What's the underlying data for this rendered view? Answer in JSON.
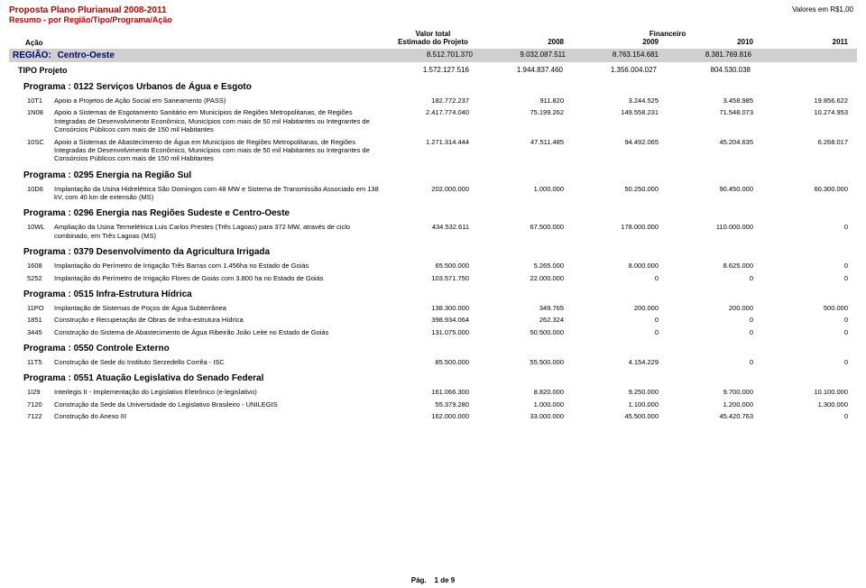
{
  "header": {
    "title": "Proposta Plano Plurianual 2008-2011",
    "subtitle": "Resumo - por Região/Tipo/Programa/Ação",
    "currency_note": "Valores em R$1,00",
    "acao_label": "Ação",
    "valor_total_label1": "Valor total",
    "valor_total_label2": "Estimado do Projeto",
    "financeiro_label": "Financeiro",
    "years": [
      "2008",
      "2009",
      "2010",
      "2011"
    ]
  },
  "region": {
    "prefix": "REGIÃO:",
    "name": "Centro-Oeste",
    "est": "8.512.701.370",
    "y": [
      "9.032.087.511",
      "8.763.154.681",
      "8.381.769.816",
      ""
    ]
  },
  "tipo": {
    "label": "TIPO  Projeto",
    "est": "1.572.127.516",
    "y": [
      "1.944.837.460",
      "1.356.004.027",
      "804.530.038",
      ""
    ]
  },
  "programas": [
    {
      "header": "Programa : 0122    Serviços Urbanos de Água e Esgoto",
      "actions": [
        {
          "code": "10T1",
          "desc": "Apoio a Projetos de Ação Social em Saneamento (PASS)",
          "est": "182.772.237",
          "y": [
            "911.820",
            "3.244.525",
            "3.458.985",
            "19.856.622"
          ]
        },
        {
          "code": "1N08",
          "desc": "Apoio a Sistemas de Esgotamento Sanitário em Municípios de Regiões Metropolitanas, de Regiões Integradas de Desenvolvimento Econômico, Municípios com mais de 50 mil Habitantes ou Integrantes de Consórcios Públicos com mais de 150 mil Habitantes",
          "est": "2.417.774.040",
          "y": [
            "75.199.262",
            "149.558.231",
            "71.548.073",
            "10.274.953"
          ]
        },
        {
          "code": "10SC",
          "desc": "Apoio a Sistemas de Abastecimento de Água em Municípios de Regiões Metropolitanas, de Regiões Integradas de Desenvolvimento Econômico, Municípios com mais de 50 mil Habitantes ou Integrantes de Consórcios Públicos com mais de 150 mil Habitantes",
          "est": "1.271.314.444",
          "y": [
            "47.511.485",
            "94.492.065",
            "45.204.635",
            "6.268.017"
          ]
        }
      ]
    },
    {
      "header": "Programa : 0295    Energia na Região Sul",
      "actions": [
        {
          "code": "10D6",
          "desc": "Implantação da Usina Hidrelétrica São Domingos com 48 MW e Sistema de Transmissão Associado em 138 kV, com 40 km de extensão (MS)",
          "est": "202.000.000",
          "y": [
            "1.000.000",
            "50.250.000",
            "90.450.000",
            "60.300.000"
          ]
        }
      ]
    },
    {
      "header": "Programa : 0296    Energia nas Regiões Sudeste e Centro-Oeste",
      "actions": [
        {
          "code": "10WL",
          "desc": "Ampliação da Usina Termelétrica Luis Carlos Prestes (Três Lagoas) para 372 MW, através de ciclo combinado, em Três Lagoas (MS)",
          "est": "434.532.611",
          "y": [
            "67.500.000",
            "178.000.000",
            "110.000.000",
            "0"
          ]
        }
      ]
    },
    {
      "header": "Programa : 0379    Desenvolvimento da Agricultura Irrigada",
      "actions": [
        {
          "code": "1608",
          "desc": "Implantação do Perímetro de Irrigação Três Barras com 1.456ha no Estado de Goiás",
          "est": "65.500.000",
          "y": [
            "5.265.000",
            "8.000.000",
            "8.625.000",
            "0"
          ]
        },
        {
          "code": "5252",
          "desc": "Implantação do Perímetro de Irrigação Flores de Goiás com 3.800 ha no Estado de Goiás",
          "est": "103.571.750",
          "y": [
            "22.000.000",
            "0",
            "0",
            "0"
          ]
        }
      ]
    },
    {
      "header": "Programa : 0515    Infra-Estrutura Hídrica",
      "actions": [
        {
          "code": "11PO",
          "desc": "Implantação de Sistemas de Poços de Água Subterrânea",
          "est": "138.300.000",
          "y": [
            "349.765",
            "200.000",
            "200.000",
            "500.000"
          ]
        },
        {
          "code": "1851",
          "desc": "Construção e Recuperação de Obras de Infra-estrutura Hídrica",
          "est": "398.934.064",
          "y": [
            "262.324",
            "0",
            "0",
            "0"
          ]
        },
        {
          "code": "3445",
          "desc": "Construção do Sistema de Abastecimento de Água Ribeirão João Leite no Estado de Goiás",
          "est": "131.075.000",
          "y": [
            "50.500.000",
            "0",
            "0",
            "0"
          ]
        }
      ]
    },
    {
      "header": "Programa : 0550    Controle Externo",
      "actions": [
        {
          "code": "11T5",
          "desc": "Construção de Sede do Instituto Serzedello Corrêa - ISC",
          "est": "85.500.000",
          "y": [
            "55.500.000",
            "4.154.229",
            "0",
            "0"
          ]
        }
      ]
    },
    {
      "header": "Programa : 0551    Atuação Legislativa do Senado Federal",
      "actions": [
        {
          "code": "1I29",
          "desc": "Interlegis II - Implementação do Legislativo Eletrônico (e-legislativo)",
          "est": "161.066.300",
          "y": [
            "8.820.000",
            "9.250.000",
            "9.700.000",
            "10.100.000"
          ]
        },
        {
          "code": "7120",
          "desc": "Construção da Sede da Universidade do Legislativo Brasileiro - UNILEGIS",
          "est": "55.379.280",
          "y": [
            "1.000.000",
            "1.100.000",
            "1.200.000",
            "1.300.000"
          ]
        },
        {
          "code": "7122",
          "desc": "Construção do Anexo III",
          "est": "162.000.000",
          "y": [
            "33.000.000",
            "45.500.000",
            "45.420.763",
            "0"
          ]
        }
      ]
    }
  ],
  "footer": {
    "pag_label": "Pág.",
    "page": "1 de 9"
  },
  "colors": {
    "title": "#c00000",
    "region_bg": "#d0d0d0",
    "region_label": "#000080"
  }
}
